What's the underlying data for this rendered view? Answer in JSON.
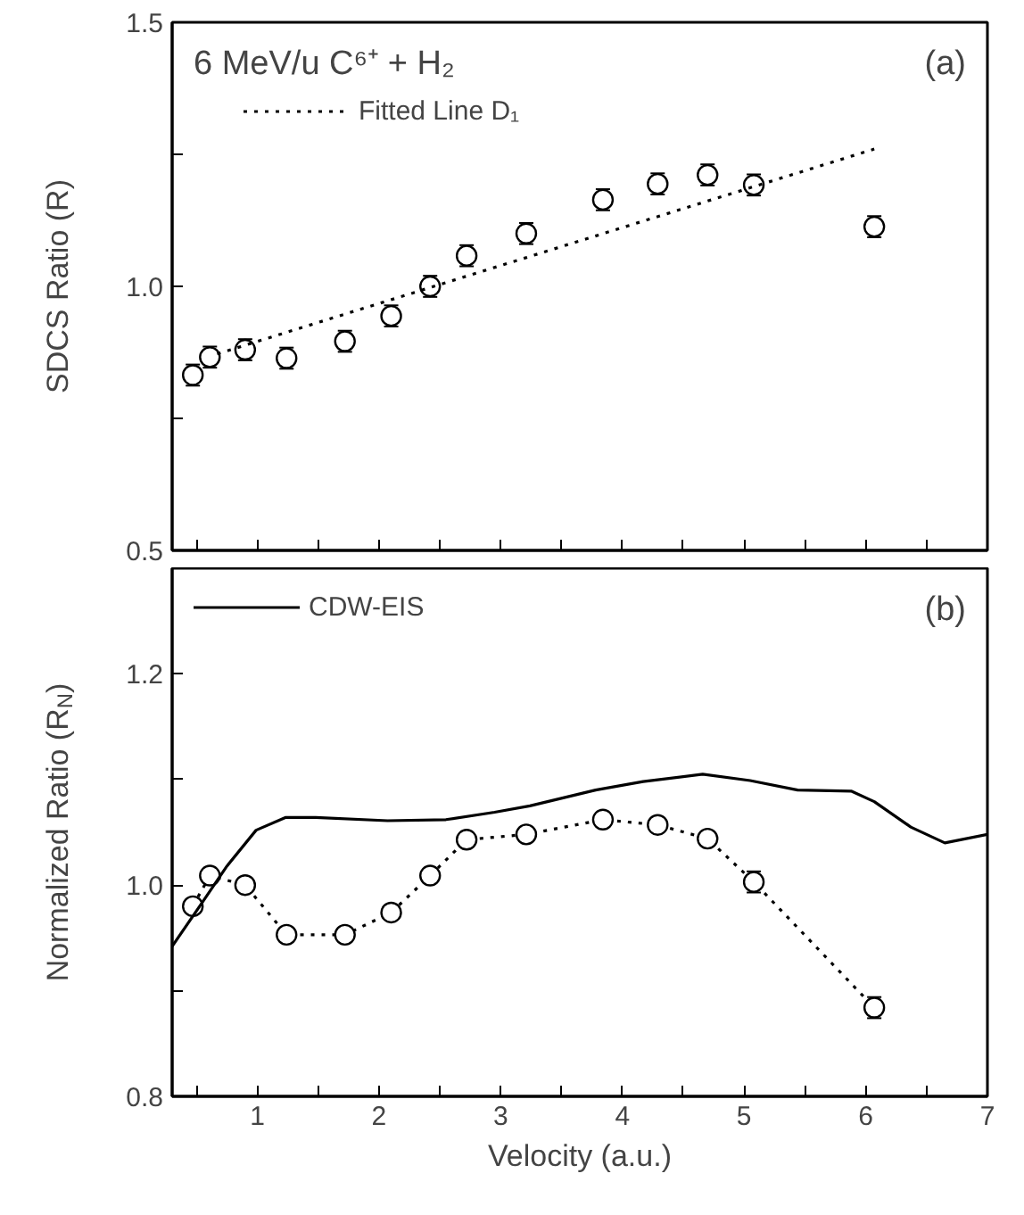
{
  "chart_data": [
    {
      "type": "scatter",
      "ylabel": "SDCS Ratio (R)",
      "annotations": [
        "6 MeV/u C⁶⁺ + H₂",
        "(a)"
      ],
      "xlim": [
        0.3,
        7
      ],
      "xticks": [
        {
          "value": 0.5,
          "label": null
        },
        {
          "value": 1,
          "label": null
        },
        {
          "value": 1.5,
          "label": null
        },
        {
          "value": 2,
          "label": null
        },
        {
          "value": 2.5,
          "label": null
        },
        {
          "value": 3,
          "label": null
        },
        {
          "value": 3.5,
          "label": null
        },
        {
          "value": 4,
          "label": null
        },
        {
          "value": 4.5,
          "label": null
        },
        {
          "value": 5,
          "label": null
        },
        {
          "value": 5.5,
          "label": null
        },
        {
          "value": 6,
          "label": null
        },
        {
          "value": 6.5,
          "label": null
        },
        {
          "value": 7,
          "label": null
        }
      ],
      "ylim": [
        0.5,
        1.5
      ],
      "yticks": [
        0.5,
        {
          "value": 0.75,
          "label": null
        },
        {
          "value": 1,
          "label": "1.0"
        },
        {
          "value": 1.25,
          "label": null
        },
        1.5
      ],
      "tick_labels": "y",
      "grid": false,
      "legend": "top left",
      "series": [
        {
          "type": "scatter",
          "color": "#000000",
          "marker": "circle",
          "x": [
            0.47,
            0.61,
            0.9,
            1.24,
            1.72,
            2.1,
            2.42,
            2.72,
            3.21,
            3.84,
            4.29,
            4.7,
            5.08,
            6.07
          ],
          "values": [
            0.832,
            0.866,
            0.88,
            0.864,
            0.896,
            0.944,
            1.0,
            1.058,
            1.1,
            1.164,
            1.194,
            1.211,
            1.192,
            1.113
          ],
          "errors": [
            0.02,
            0.02,
            0.02,
            0.02,
            0.02,
            0.02,
            0.02,
            0.02,
            0.02,
            0.02,
            0.02,
            0.02,
            0.02,
            0.02
          ]
        },
        {
          "type": "line",
          "name": "Fitted Line D₁",
          "color": "#000000",
          "line_style": "dotted",
          "x": [
            0.67,
            6.07
          ],
          "values": [
            0.872,
            1.26
          ]
        }
      ]
    },
    {
      "type": "scatter",
      "xlabel": "Velocity (a.u.)",
      "ylabel": "Normalized Ratio (R$_{N}$)",
      "annotations": [
        "(b)"
      ],
      "xlim": [
        0.3,
        7
      ],
      "xticks": [
        {
          "value": 0.5,
          "label": null
        },
        {
          "value": 1,
          "label": "1"
        },
        {
          "value": 1.5,
          "label": null
        },
        {
          "value": 2,
          "label": "2"
        },
        {
          "value": 2.5,
          "label": null
        },
        {
          "value": 3,
          "label": "3"
        },
        {
          "value": 3.5,
          "label": null
        },
        {
          "value": 4,
          "label": "4"
        },
        {
          "value": 4.5,
          "label": null
        },
        {
          "value": 5,
          "label": "5"
        },
        {
          "value": 5.5,
          "label": null
        },
        {
          "value": 6,
          "label": "6"
        },
        {
          "value": 6.5,
          "label": null
        },
        {
          "value": 7,
          "label": "7"
        }
      ],
      "ylim": [
        0.8,
        1.3
      ],
      "yticks": [
        0.8,
        {
          "value": 0.9,
          "label": null
        },
        {
          "value": 1,
          "label": "1.0"
        },
        {
          "value": 1.1,
          "label": null
        },
        1.2,
        {
          "value": 1.3,
          "label": null
        }
      ],
      "grid": false,
      "legend": "top left",
      "series": [
        {
          "type": "line",
          "color": "#000000",
          "line_style": "dotted",
          "x": [
            0.47,
            0.61,
            0.9,
            1.24,
            1.72,
            2.1,
            2.42,
            2.72,
            3.21,
            3.84,
            4.29,
            4.7,
            5.08,
            6.07
          ],
          "values": [
            0.98,
            1.009,
            1.0,
            0.953,
            0.953,
            0.974,
            1.009,
            1.043,
            1.048,
            1.062,
            1.057,
            1.044,
            1.003,
            0.884
          ]
        },
        {
          "type": "scatter",
          "color": "#000000",
          "marker": "circle",
          "x": [
            0.47,
            0.61,
            0.9,
            1.24,
            1.72,
            2.1,
            2.42,
            2.72,
            3.21,
            3.84,
            4.29,
            4.7,
            5.08,
            6.07
          ],
          "values": [
            0.98,
            1.009,
            1.0,
            0.953,
            0.953,
            0.974,
            1.009,
            1.043,
            1.048,
            1.062,
            1.057,
            1.044,
            1.003,
            0.884
          ],
          "errors": [
            0.005,
            0.005,
            0.005,
            0.005,
            0.005,
            0.005,
            0.005,
            0.005,
            0.005,
            0.005,
            0.005,
            0.005,
            0.01,
            0.01
          ]
        },
        {
          "type": "line",
          "name": "CDW-EIS",
          "color": "#000000",
          "line_style": "solid",
          "x": [
            0.3,
            0.55,
            0.75,
            0.99,
            1.23,
            1.48,
            2.07,
            2.55,
            2.95,
            3.24,
            3.78,
            4.17,
            4.66,
            5.05,
            5.44,
            5.88,
            6.07,
            6.37,
            6.65,
            7.0
          ],
          "values": [
            0.942,
            0.984,
            1.018,
            1.052,
            1.064,
            1.064,
            1.061,
            1.062,
            1.069,
            1.075,
            1.09,
            1.098,
            1.105,
            1.099,
            1.09,
            1.089,
            1.079,
            1.055,
            1.04,
            1.048
          ]
        }
      ]
    }
  ]
}
